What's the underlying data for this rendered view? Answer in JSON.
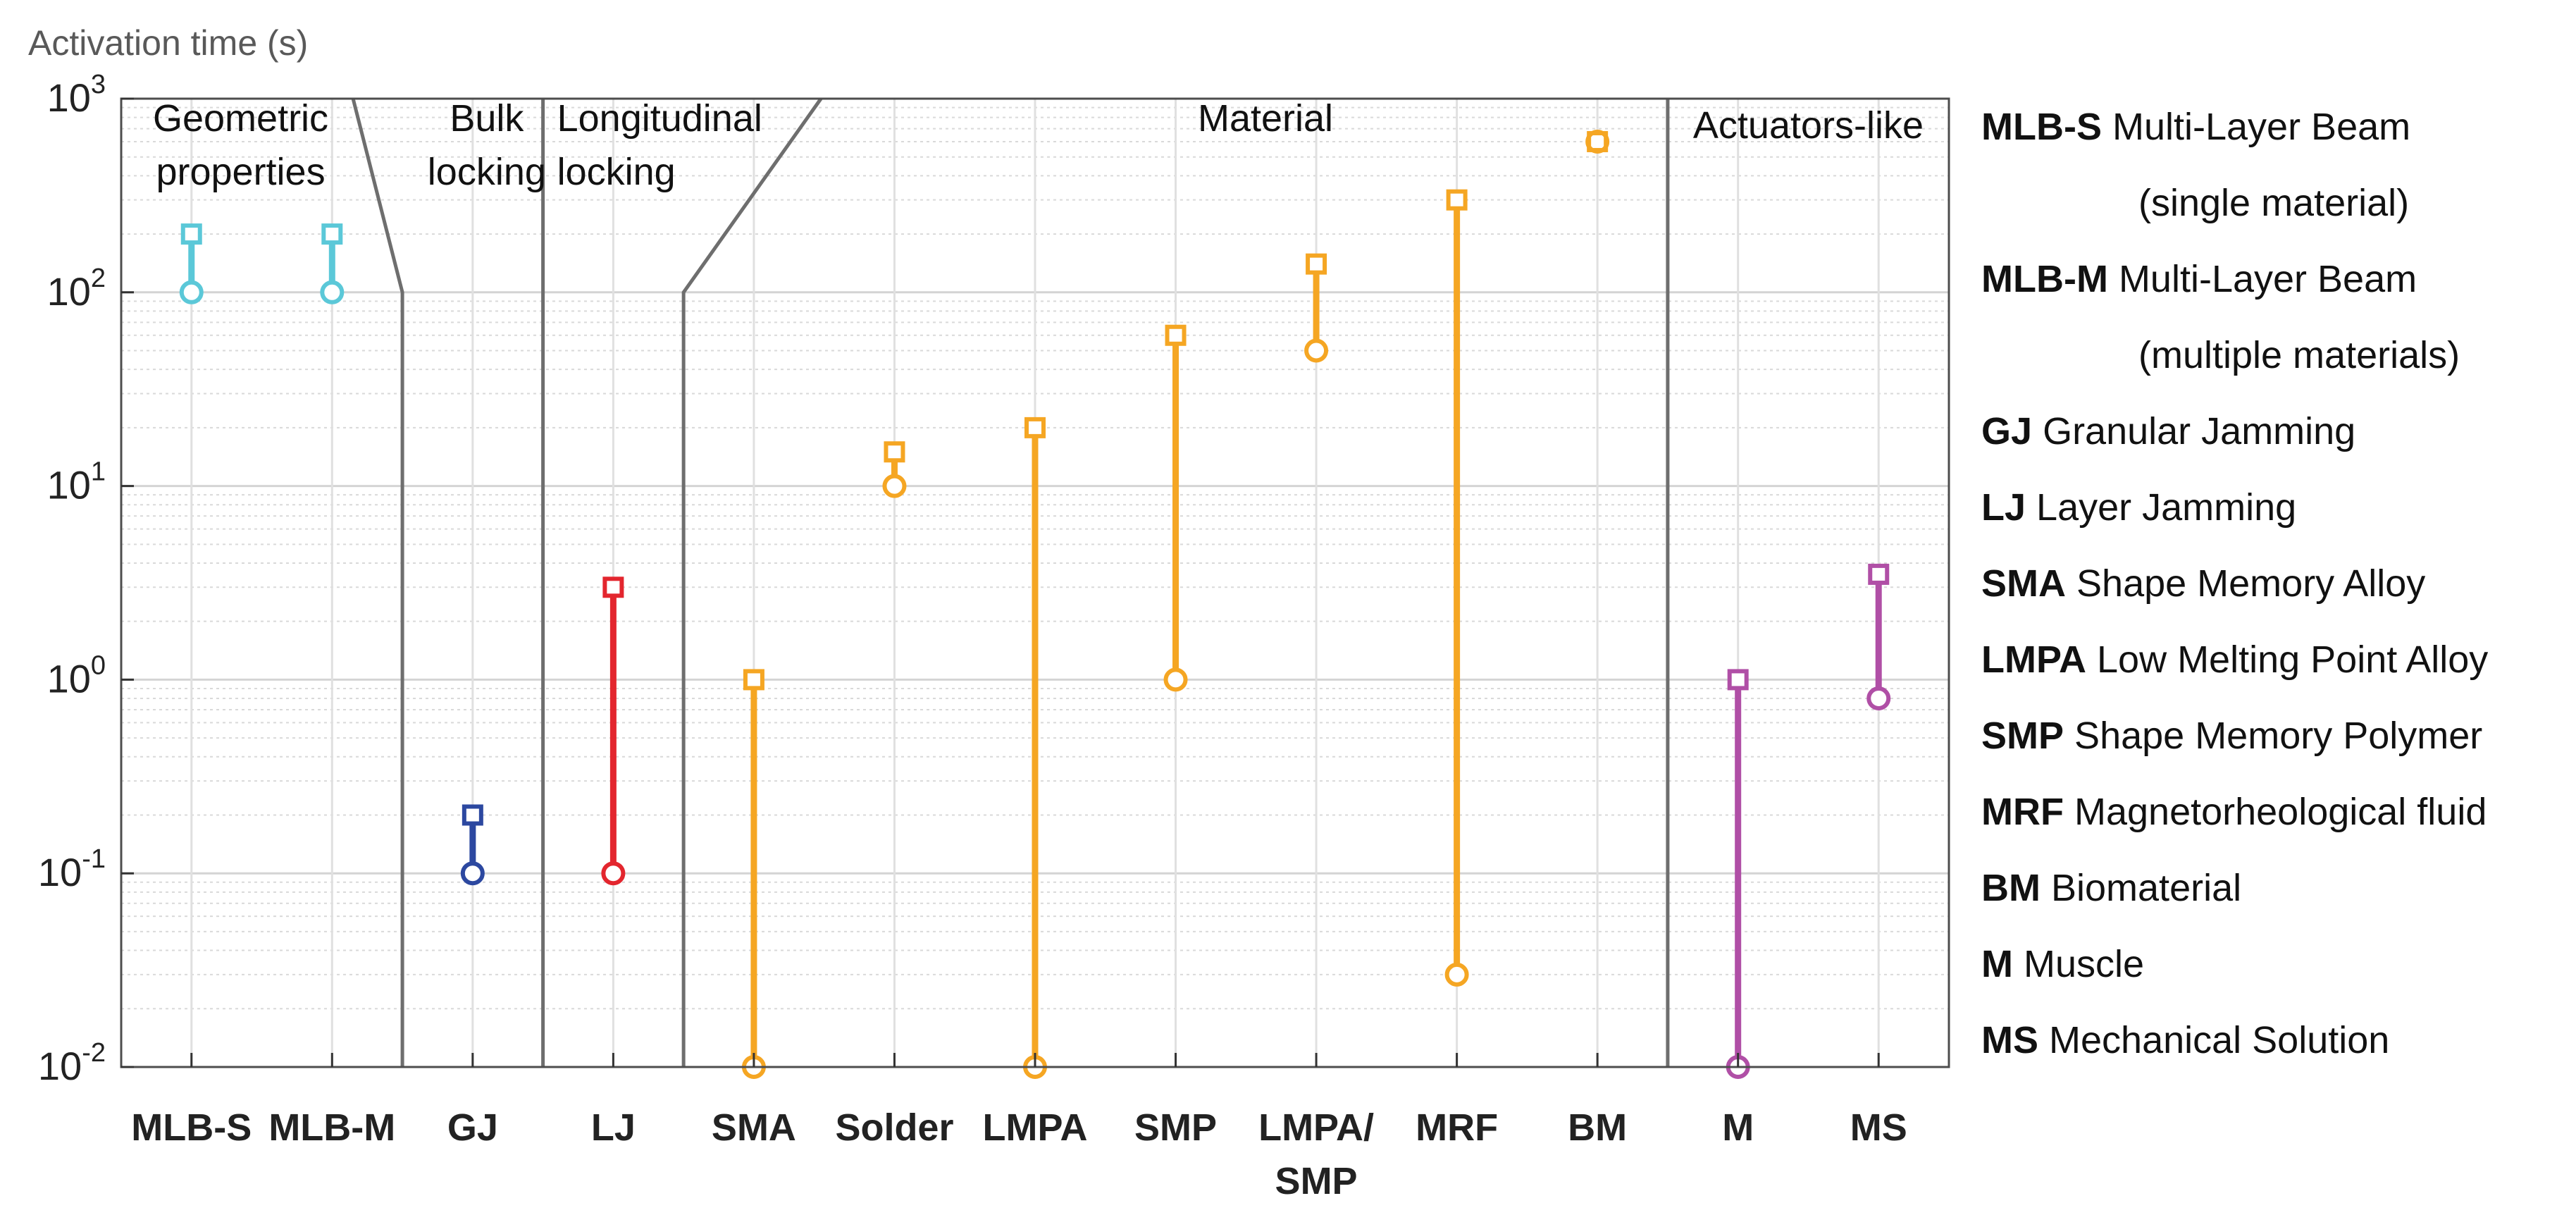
{
  "chart_data": {
    "type": "range",
    "ylabel": "Activation time (s)",
    "yscale": "log",
    "ylim": [
      0.01,
      1000
    ],
    "yticks": [
      {
        "value": 0.01,
        "base": "10",
        "exp": "-2"
      },
      {
        "value": 0.1,
        "base": "10",
        "exp": "-1"
      },
      {
        "value": 1,
        "base": "10",
        "exp": "0"
      },
      {
        "value": 10,
        "base": "10",
        "exp": "1"
      },
      {
        "value": 100,
        "base": "10",
        "exp": "2"
      },
      {
        "value": 1000,
        "base": "10",
        "exp": "3"
      }
    ],
    "grid": true,
    "categories": [
      {
        "label": "MLB-S",
        "label2": ""
      },
      {
        "label": "MLB-M",
        "label2": ""
      },
      {
        "label": "GJ",
        "label2": ""
      },
      {
        "label": "LJ",
        "label2": ""
      },
      {
        "label": "SMA",
        "label2": ""
      },
      {
        "label": "Solder",
        "label2": ""
      },
      {
        "label": "LMPA",
        "label2": ""
      },
      {
        "label": "SMP",
        "label2": ""
      },
      {
        "label": "LMPA/",
        "label2": "SMP"
      },
      {
        "label": "MRF",
        "label2": ""
      },
      {
        "label": "BM",
        "label2": ""
      },
      {
        "label": "M",
        "label2": ""
      },
      {
        "label": "MS",
        "label2": ""
      }
    ],
    "series": [
      {
        "category": "MLB-S",
        "min": 100,
        "max": 200,
        "color": "#5bc8d8"
      },
      {
        "category": "MLB-M",
        "min": 100,
        "max": 200,
        "color": "#5bc8d8"
      },
      {
        "category": "GJ",
        "min": 0.1,
        "max": 0.2,
        "color": "#2c48a0"
      },
      {
        "category": "LJ",
        "min": 0.1,
        "max": 3,
        "color": "#e3262e"
      },
      {
        "category": "SMA",
        "min": 0.01,
        "max": 1,
        "color": "#f5a623"
      },
      {
        "category": "Solder",
        "min": 10,
        "max": 15,
        "color": "#f5a623"
      },
      {
        "category": "LMPA",
        "min": 0.01,
        "max": 20,
        "color": "#f5a623"
      },
      {
        "category": "SMP",
        "min": 1,
        "max": 60,
        "color": "#f5a623"
      },
      {
        "category": "LMPA/SMP",
        "min": 50,
        "max": 140,
        "color": "#f5a623"
      },
      {
        "category": "MRF",
        "min": 0.03,
        "max": 300,
        "color": "#f5a623"
      },
      {
        "category": "BM",
        "min": 600,
        "max": 600,
        "color": "#f5a623"
      },
      {
        "category": "M",
        "min": 0.01,
        "max": 1,
        "color": "#b04fa6"
      },
      {
        "category": "MS",
        "min": 0.8,
        "max": 3.5,
        "color": "#b04fa6"
      }
    ],
    "regions": [
      {
        "lines": [
          "Geometric",
          "properties"
        ]
      },
      {
        "lines": [
          "Bulk",
          "locking"
        ]
      },
      {
        "lines": [
          "Longitudinal",
          "locking"
        ]
      },
      {
        "lines": [
          "Material"
        ]
      },
      {
        "lines": [
          "Actuators-like"
        ]
      }
    ],
    "legend": [
      {
        "abbr": "MLB-S",
        "desc": "Multi-Layer Beam",
        "desc2": "(single material)"
      },
      {
        "abbr": "MLB-M",
        "desc": "Multi-Layer Beam",
        "desc2": "(multiple materials)"
      },
      {
        "abbr": "GJ",
        "desc": "Granular Jamming",
        "desc2": ""
      },
      {
        "abbr": "LJ",
        "desc": "Layer Jamming",
        "desc2": ""
      },
      {
        "abbr": "SMA",
        "desc": "Shape Memory Alloy",
        "desc2": ""
      },
      {
        "abbr": "LMPA",
        "desc": "Low Melting Point Alloy",
        "desc2": ""
      },
      {
        "abbr": "SMP",
        "desc": "Shape Memory Polymer",
        "desc2": ""
      },
      {
        "abbr": "MRF",
        "desc": "Magnetorheological fluid",
        "desc2": ""
      },
      {
        "abbr": "BM",
        "desc": "Biomaterial",
        "desc2": ""
      },
      {
        "abbr": "M",
        "desc": "Muscle",
        "desc2": ""
      },
      {
        "abbr": "MS",
        "desc": "Mechanical Solution",
        "desc2": ""
      }
    ],
    "legend_position": "right"
  }
}
